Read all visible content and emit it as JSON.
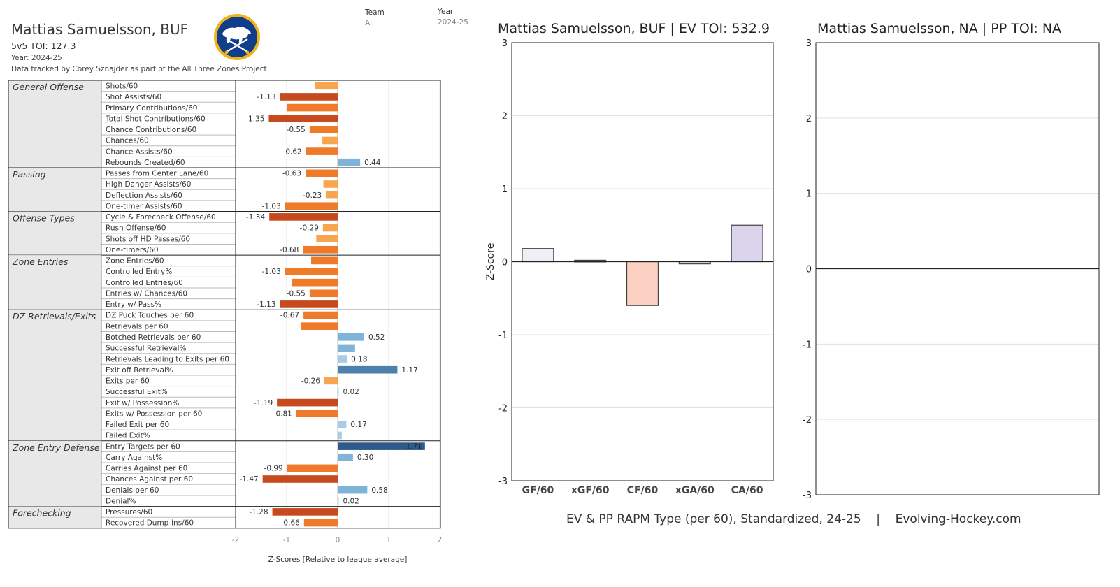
{
  "header": {
    "player": "Mattias Samuelsson, BUF",
    "toi_label": "5v5 TOI:",
    "toi_value": "127.3",
    "year_line": "Year: 2024-25",
    "credit": "Data tracked by Corey Sznajder as part of the All Three Zones Project",
    "filters": [
      {
        "label": "Team",
        "value": "All"
      },
      {
        "label": "Year",
        "value": "2024-25"
      }
    ]
  },
  "colors": {
    "neg_strong": "#c64a1e",
    "neg_mid": "#ee7a2a",
    "neg_light": "#f8a54f",
    "pos_light": "#a9cbe4",
    "pos_mid": "#7fb3d9",
    "pos_strong": "#4c80ad",
    "pos_darkest": "#2d5a8a",
    "section_bg": "#e8e8e8"
  },
  "chart_data": [
    {
      "type": "bar",
      "orientation": "horizontal",
      "xlabel": "Z-Scores [Relative to league average]",
      "xlim": [
        -2,
        2
      ],
      "xticks": [
        "-2",
        "-1",
        "0",
        "1",
        "2"
      ],
      "groups": [
        {
          "name": "General Offense",
          "metrics": [
            {
              "label": "Shots/60",
              "value": -0.45,
              "shown": ""
            },
            {
              "label": "Shot Assists/60",
              "value": -1.13,
              "shown": "-1.13"
            },
            {
              "label": "Primary Contributions/60",
              "value": -1.0,
              "shown": ""
            },
            {
              "label": "Total Shot Contributions/60",
              "value": -1.35,
              "shown": "-1.35"
            },
            {
              "label": "Chance Contributions/60",
              "value": -0.55,
              "shown": "-0.55"
            },
            {
              "label": "Chances/60",
              "value": -0.3,
              "shown": ""
            },
            {
              "label": "Chance Assists/60",
              "value": -0.62,
              "shown": "-0.62"
            },
            {
              "label": "Rebounds Created/60",
              "value": 0.44,
              "shown": "0.44"
            }
          ]
        },
        {
          "name": "Passing",
          "metrics": [
            {
              "label": "Passes from Center Lane/60",
              "value": -0.63,
              "shown": "-0.63"
            },
            {
              "label": "High Danger Assists/60",
              "value": -0.28,
              "shown": ""
            },
            {
              "label": "Deflection Assists/60",
              "value": -0.23,
              "shown": "-0.23"
            },
            {
              "label": "One-timer Assists/60",
              "value": -1.03,
              "shown": "-1.03"
            }
          ]
        },
        {
          "name": "Offense Types",
          "metrics": [
            {
              "label": "Cycle & Forecheck Offense/60",
              "value": -1.34,
              "shown": "-1.34"
            },
            {
              "label": "Rush Offense/60",
              "value": -0.29,
              "shown": "-0.29"
            },
            {
              "label": "Shots off HD Passes/60",
              "value": -0.42,
              "shown": ""
            },
            {
              "label": "One-timers/60",
              "value": -0.68,
              "shown": "-0.68"
            }
          ]
        },
        {
          "name": "Zone Entries",
          "metrics": [
            {
              "label": "Zone Entries/60",
              "value": -0.52,
              "shown": ""
            },
            {
              "label": "Controlled Entry%",
              "value": -1.03,
              "shown": "-1.03"
            },
            {
              "label": "Controlled Entries/60",
              "value": -0.9,
              "shown": ""
            },
            {
              "label": "Entries w/ Chances/60",
              "value": -0.55,
              "shown": "-0.55"
            },
            {
              "label": "Entry w/ Pass%",
              "value": -1.13,
              "shown": "-1.13"
            }
          ]
        },
        {
          "name": "DZ Retrievals/Exits",
          "metrics": [
            {
              "label": "DZ Puck Touches per 60",
              "value": -0.67,
              "shown": "-0.67"
            },
            {
              "label": "Retrievals per 60",
              "value": -0.72,
              "shown": ""
            },
            {
              "label": "Botched Retrievals per 60",
              "value": 0.52,
              "shown": "0.52"
            },
            {
              "label": "Successful Retrieval%",
              "value": 0.34,
              "shown": ""
            },
            {
              "label": "Retrievals Leading to Exits per 60",
              "value": 0.18,
              "shown": "0.18"
            },
            {
              "label": "Exit off Retrieval%",
              "value": 1.17,
              "shown": "1.17"
            },
            {
              "label": "Exits per 60",
              "value": -0.26,
              "shown": "-0.26"
            },
            {
              "label": "Successful Exit%",
              "value": 0.02,
              "shown": "0.02"
            },
            {
              "label": "Exit w/ Possession%",
              "value": -1.19,
              "shown": "-1.19"
            },
            {
              "label": "Exits w/ Possession per 60",
              "value": -0.81,
              "shown": "-0.81"
            },
            {
              "label": "Failed Exit per 60",
              "value": 0.17,
              "shown": "0.17"
            },
            {
              "label": "Failed Exit%",
              "value": 0.08,
              "shown": ""
            }
          ]
        },
        {
          "name": "Zone Entry Defense",
          "metrics": [
            {
              "label": "Entry Targets per 60",
              "value": 1.71,
              "shown": "1.71"
            },
            {
              "label": "Carry Against%",
              "value": 0.3,
              "shown": "0.30"
            },
            {
              "label": "Carries Against per 60",
              "value": -0.99,
              "shown": "-0.99"
            },
            {
              "label": "Chances Against per 60",
              "value": -1.47,
              "shown": "-1.47"
            },
            {
              "label": "Denials per 60",
              "value": 0.58,
              "shown": "0.58"
            },
            {
              "label": "Denial%",
              "value": 0.02,
              "shown": "0.02"
            }
          ]
        },
        {
          "name": "Forechecking",
          "metrics": [
            {
              "label": "Pressures/60",
              "value": -1.28,
              "shown": "-1.28"
            },
            {
              "label": "Recovered Dump-ins/60",
              "value": -0.66,
              "shown": "-0.66"
            }
          ]
        }
      ]
    },
    {
      "type": "bar",
      "title": "Mattias Samuelsson, BUF  |  EV TOI: 532.9",
      "ylabel": "Z-Score",
      "ylim": [
        -3,
        3
      ],
      "yticks": [
        "3",
        "2",
        "1",
        "0",
        "-1",
        "-2",
        "-3"
      ],
      "categories": [
        "GF/60",
        "xGF/60",
        "CF/60",
        "xGA/60",
        "CA/60"
      ],
      "values": [
        0.18,
        0.02,
        -0.6,
        -0.03,
        0.5
      ],
      "bar_colors": [
        "#f0eef7",
        "#f4f4f4",
        "#fdd0c4",
        "#f4f4f4",
        "#dcd4ec"
      ]
    },
    {
      "type": "bar",
      "title": "Mattias Samuelsson, NA  |  PP TOI: NA",
      "ylim": [
        -3,
        3
      ],
      "yticks": [
        "3",
        "2",
        "1",
        "0",
        "-1",
        "-2",
        "-3"
      ],
      "categories": [],
      "values": []
    }
  ],
  "footer": {
    "caption": "EV & PP RAPM Type (per 60), Standardized, 24-25    |    Evolving-Hockey.com"
  }
}
